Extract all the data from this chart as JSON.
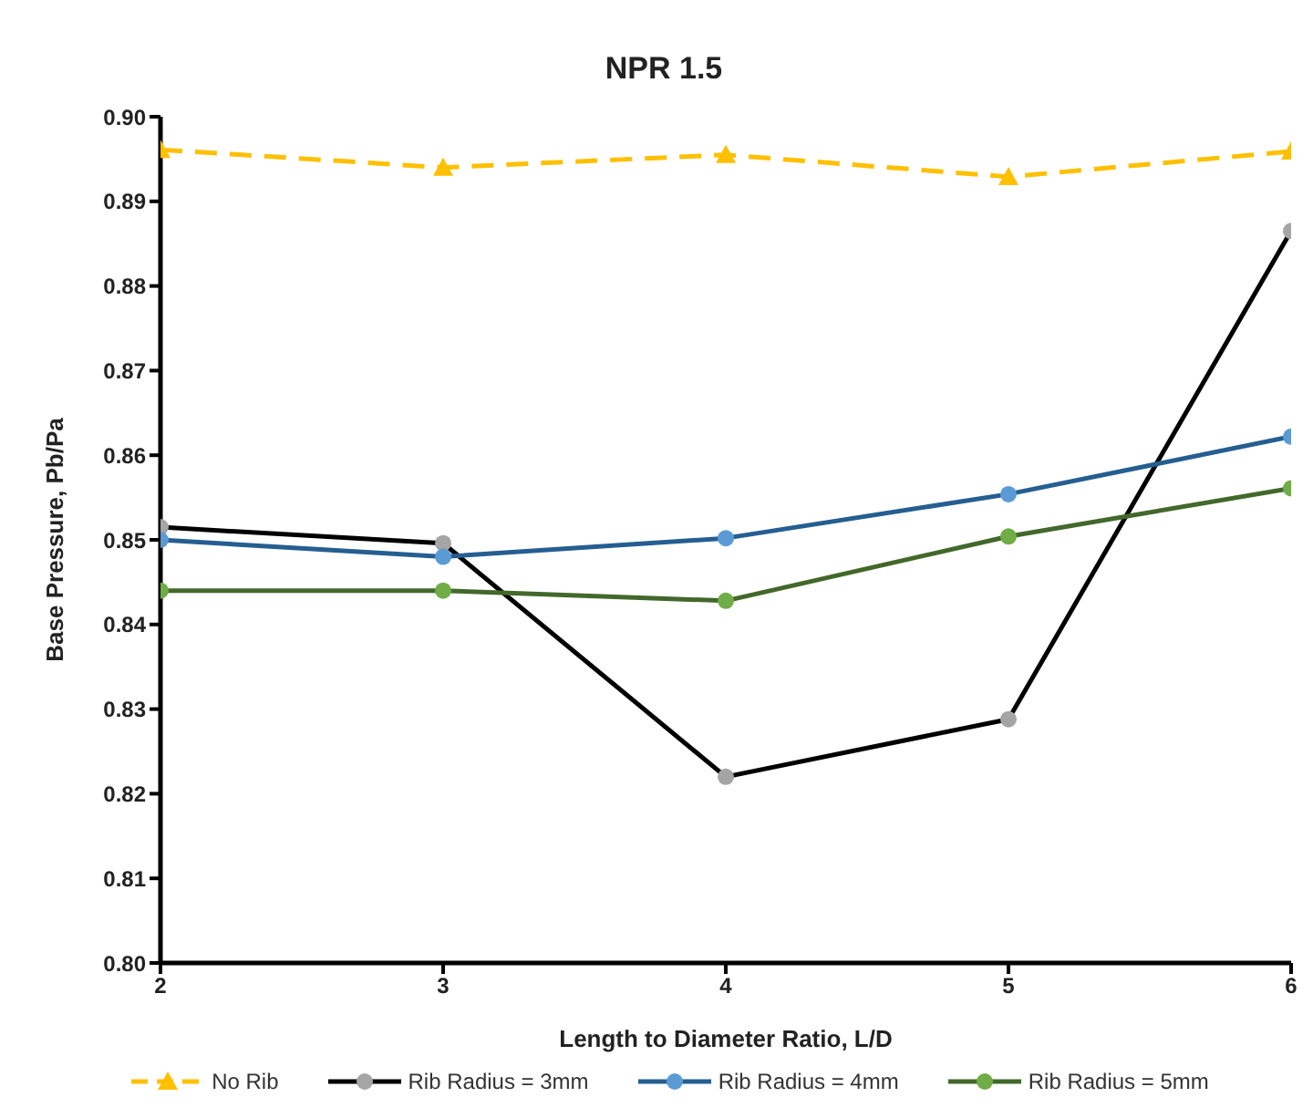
{
  "chart_data": {
    "type": "line",
    "title": "NPR 1.5",
    "xlabel": "Length to Diameter Ratio, L/D",
    "ylabel": "Base Pressure, Pb/Pa",
    "x": [
      2,
      3,
      4,
      5,
      6
    ],
    "series": [
      {
        "name": "No Rib",
        "color": "#ffc000",
        "colors": [
          "#ffc000",
          "#ffc000",
          "#ffc000",
          "#ffc000",
          "#ffc000"
        ],
        "marker": "triangle",
        "line_style": "dashed",
        "values": [
          0.8961,
          0.894,
          0.8955,
          0.8929,
          0.8959
        ]
      },
      {
        "name": "Rib Radius = 3mm",
        "color": "#000000",
        "colors": [
          "#a5a5a5",
          "#a5a5a5",
          "#a5a5a5",
          "#a5a5a5",
          "#a5a5a5"
        ],
        "marker": "circle",
        "line_style": "solid",
        "values": [
          0.8515,
          0.8496,
          0.822,
          0.8288,
          0.8865
        ]
      },
      {
        "name": "Rib Radius = 4mm",
        "color": "#255e91",
        "colors": [
          "#5b9bd5",
          "#5b9bd5",
          "#5b9bd5",
          "#5b9bd5",
          "#5b9bd5"
        ],
        "marker": "circle",
        "line_style": "solid",
        "values": [
          0.85,
          0.848,
          0.8502,
          0.8554,
          0.8622
        ]
      },
      {
        "name": "Rib Radius = 5mm",
        "color": "#43682b",
        "colors": [
          "#70ad47",
          "#70ad47",
          "#70ad47",
          "#70ad47",
          "#70ad47"
        ],
        "marker": "circle",
        "line_style": "solid",
        "values": [
          0.844,
          0.844,
          0.8428,
          0.8504,
          0.8561
        ]
      }
    ],
    "xlim": [
      2,
      6
    ],
    "xticks": [
      2,
      3,
      4,
      5,
      6
    ],
    "ylim": [
      0.8,
      0.9
    ],
    "yticks": [
      {
        "value": 0.8,
        "label": "0.80"
      },
      0.81,
      0.82,
      0.83,
      0.84,
      0.85,
      0.86,
      0.87,
      0.88,
      0.89,
      {
        "value": 0.9,
        "label": "0.90"
      }
    ],
    "grid": false,
    "legend": "bottom"
  }
}
